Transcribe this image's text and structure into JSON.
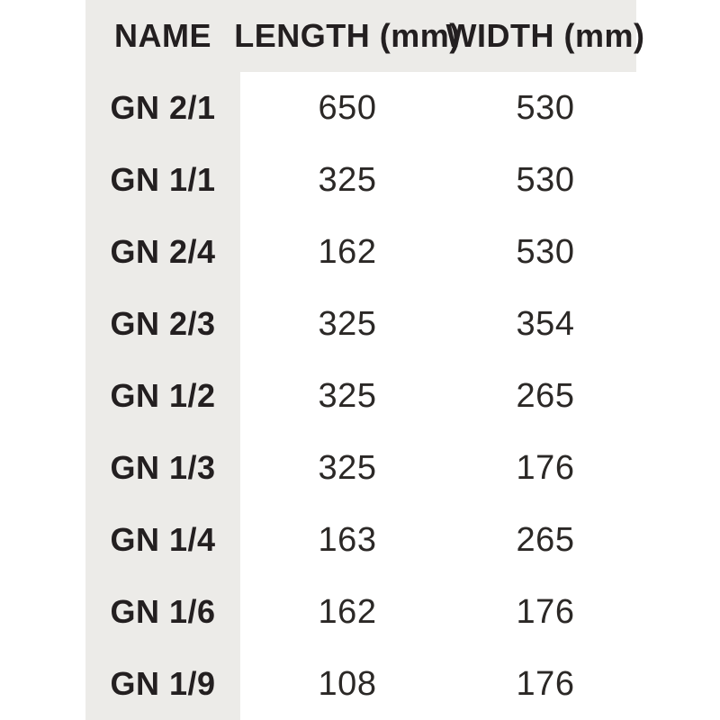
{
  "chart_data": {
    "type": "table",
    "title": "",
    "columns": [
      "NAME",
      "LENGTH (mm)",
      "WIDTH (mm)"
    ],
    "rows": [
      [
        "GN 2/1",
        650,
        530
      ],
      [
        "GN 1/1",
        325,
        530
      ],
      [
        "GN 2/4",
        162,
        530
      ],
      [
        "GN 2/3",
        325,
        354
      ],
      [
        "GN 1/2",
        325,
        265
      ],
      [
        "GN 1/3",
        325,
        176
      ],
      [
        "GN 1/4",
        163,
        265
      ],
      [
        "GN 1/6",
        162,
        176
      ],
      [
        "GN 1/9",
        108,
        176
      ]
    ],
    "layout_hints": {
      "header_band": true,
      "name_column_shaded": true,
      "grid_lines": "none"
    }
  },
  "colors": {
    "band_background": "#ECEBE8",
    "text": "#231F20",
    "page_background": "#FFFFFF"
  }
}
